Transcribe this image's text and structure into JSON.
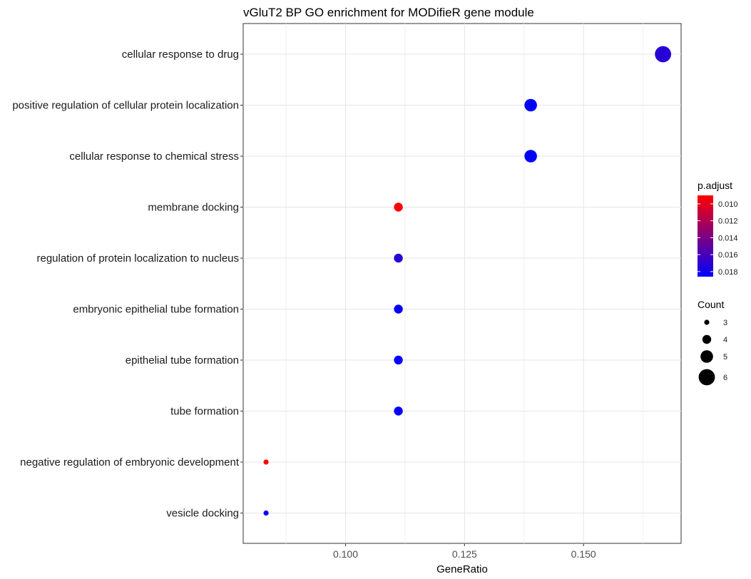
{
  "chart_data": {
    "type": "scatter",
    "title": "vGluT2 BP GO enrichment for MODifieR gene module",
    "xlabel": "GeneRatio",
    "ylabel": "",
    "xlim": [
      0.0785,
      0.1705
    ],
    "x_ticks": [
      0.1,
      0.125,
      0.15
    ],
    "x_tick_labels": [
      "0.100",
      "0.125",
      "0.150"
    ],
    "grid": true,
    "legend_position": "right",
    "points": [
      {
        "term": "cellular response to drug",
        "gene_ratio": 0.1667,
        "count": 6,
        "p_adjust": 0.0171
      },
      {
        "term": "positive regulation of cellular protein localization",
        "gene_ratio": 0.1389,
        "count": 5,
        "p_adjust": 0.0185
      },
      {
        "term": "cellular response to chemical stress",
        "gene_ratio": 0.1389,
        "count": 5,
        "p_adjust": 0.0185
      },
      {
        "term": "membrane docking",
        "gene_ratio": 0.1111,
        "count": 4,
        "p_adjust": 0.009
      },
      {
        "term": "regulation of protein localization to nucleus",
        "gene_ratio": 0.1111,
        "count": 4,
        "p_adjust": 0.017
      },
      {
        "term": "embryonic epithelial tube formation",
        "gene_ratio": 0.1111,
        "count": 4,
        "p_adjust": 0.0185
      },
      {
        "term": "epithelial tube formation",
        "gene_ratio": 0.1111,
        "count": 4,
        "p_adjust": 0.0185
      },
      {
        "term": "tube formation",
        "gene_ratio": 0.1111,
        "count": 4,
        "p_adjust": 0.0185
      },
      {
        "term": "negative regulation of embryonic development",
        "gene_ratio": 0.0833,
        "count": 3,
        "p_adjust": 0.009
      },
      {
        "term": "vesicle docking",
        "gene_ratio": 0.0833,
        "count": 3,
        "p_adjust": 0.0185
      }
    ],
    "color_legend": {
      "title": "p.adjust",
      "range": [
        0.009,
        0.0186
      ],
      "ticks": [
        0.01,
        0.012,
        0.014,
        0.016,
        0.018
      ],
      "tick_labels": [
        "0.010",
        "0.012",
        "0.014",
        "0.016",
        "0.018"
      ],
      "low_color": "#ff0000",
      "high_color": "#0000ff"
    },
    "size_legend": {
      "title": "Count",
      "values": [
        3,
        4,
        5,
        6
      ],
      "labels": [
        "3",
        "4",
        "5",
        "6"
      ]
    }
  }
}
